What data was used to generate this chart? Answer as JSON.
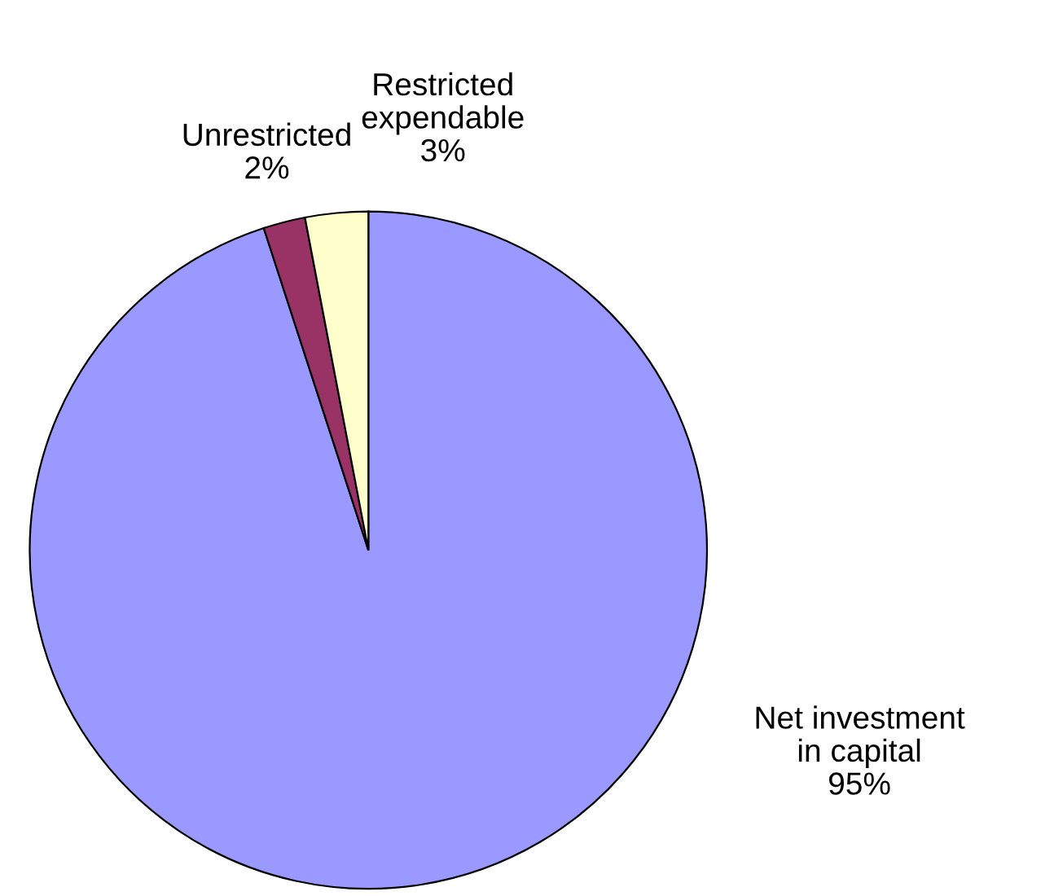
{
  "chart_data": {
    "type": "pie",
    "categories": [
      "Net investment\nin capital",
      "Unrestricted",
      "Restricted\nexpendable"
    ],
    "values": [
      95,
      2,
      3
    ],
    "colors": [
      "#9999ff",
      "#993366",
      "#ffffcc"
    ],
    "value_labels": [
      "95%",
      "2%",
      "3%"
    ]
  }
}
